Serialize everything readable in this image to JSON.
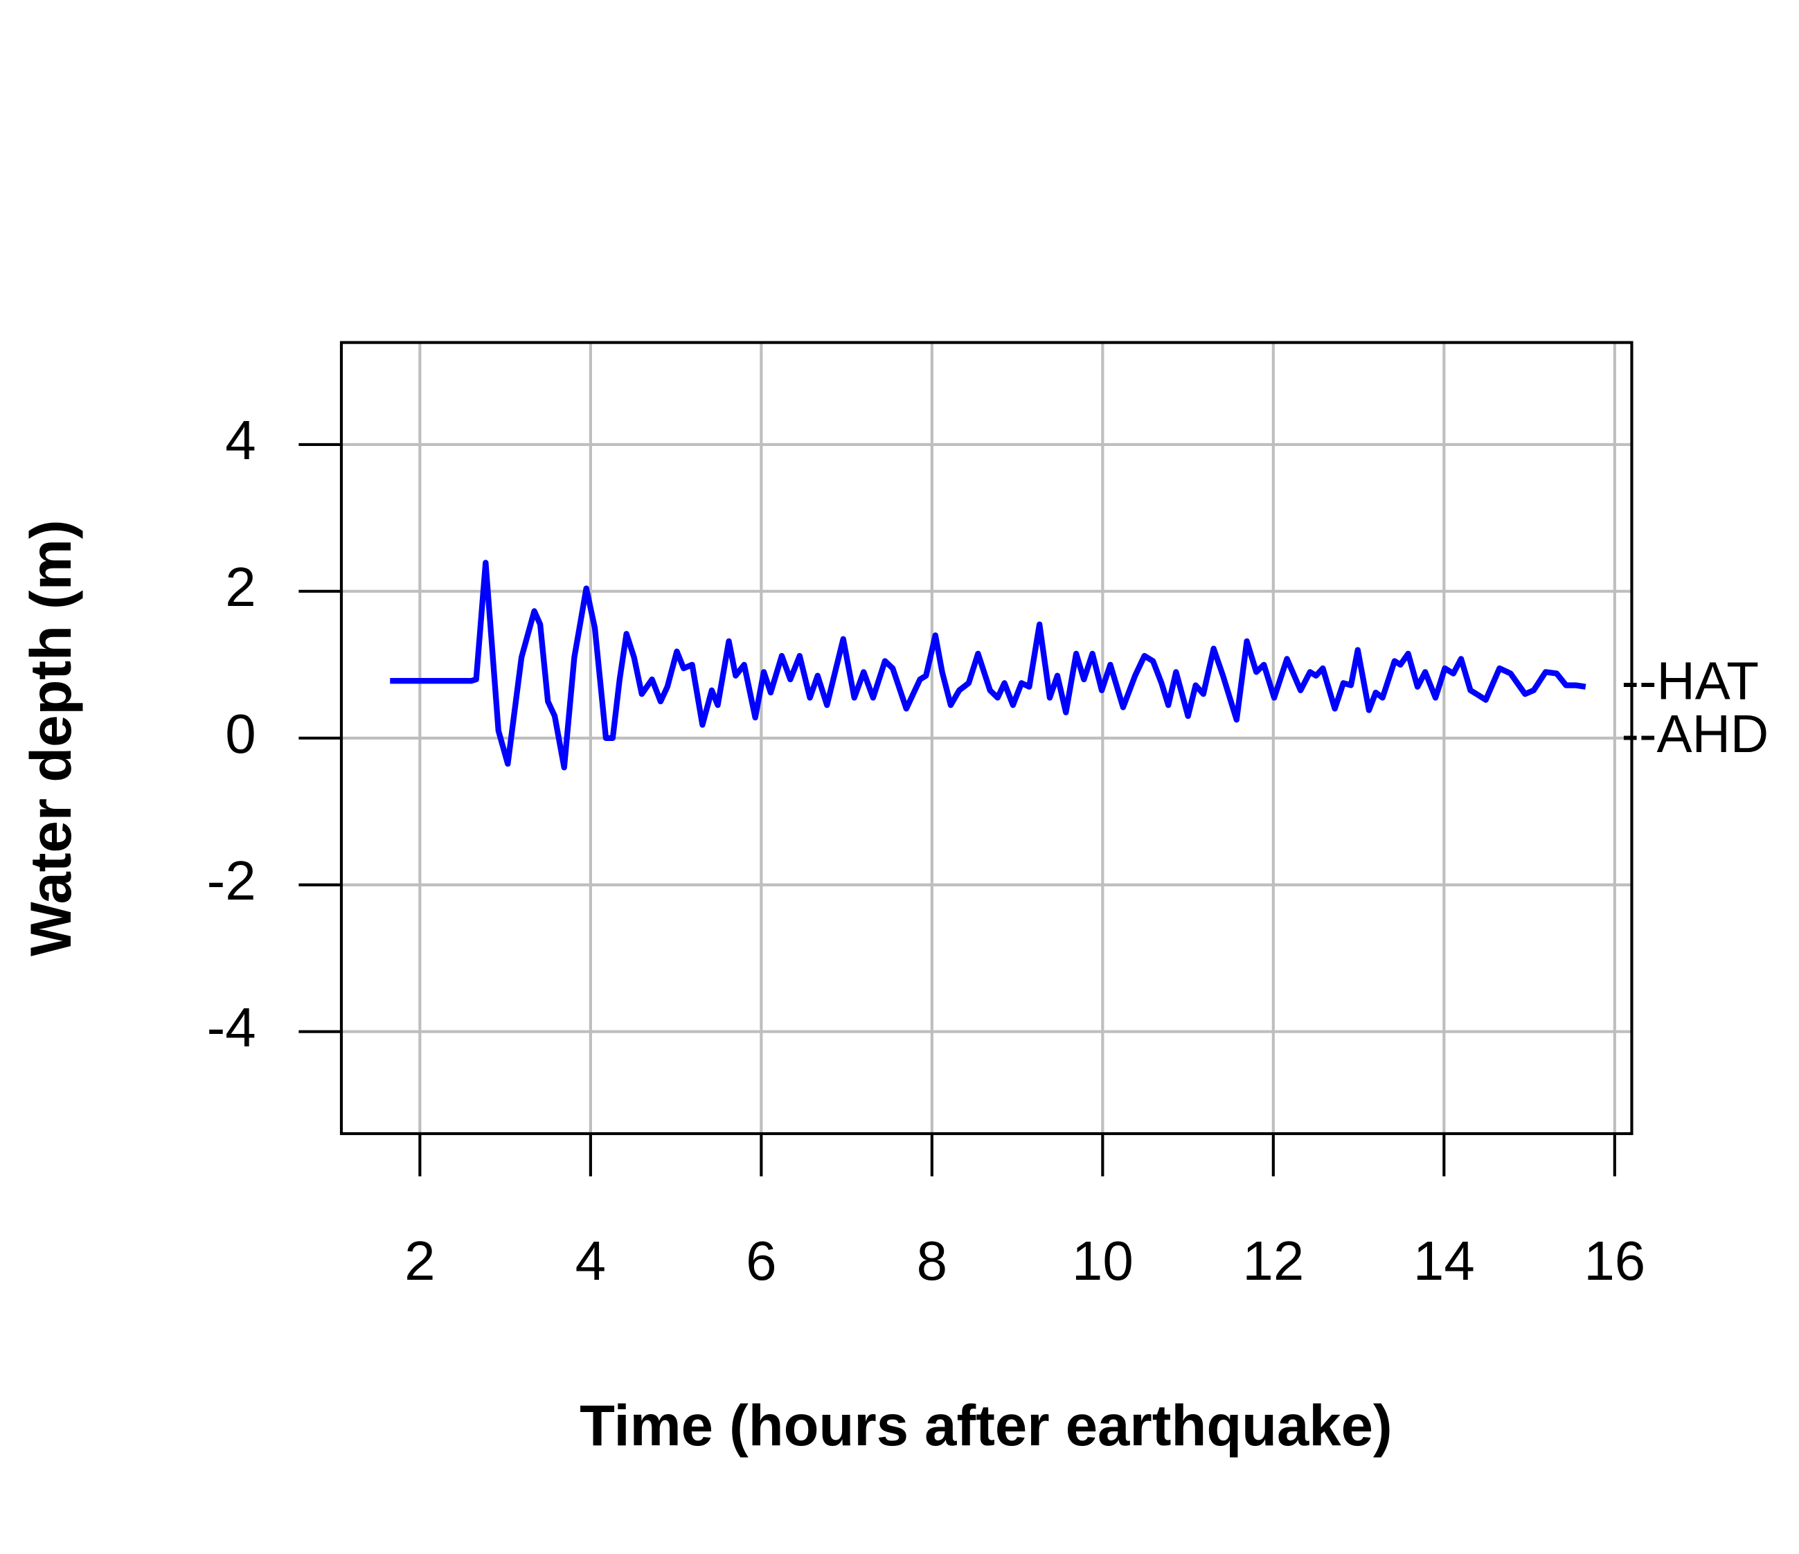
{
  "chart_data": {
    "type": "line",
    "xlabel": "Time (hours after earthquake)",
    "ylabel": "Water depth (m)",
    "xlim": [
      1.08,
      16.2
    ],
    "ylim": [
      -5.39,
      5.39
    ],
    "xticks": [
      2,
      4,
      6,
      8,
      10,
      12,
      14,
      16
    ],
    "yticks": [
      -4,
      -2,
      0,
      2,
      4
    ],
    "grid": true,
    "color": "#0000ff",
    "annotations": [
      {
        "label": "--HAT",
        "y": 0.72
      },
      {
        "label": "--AHD",
        "y": 0
      }
    ],
    "x": [
      1.65,
      2.0,
      2.3,
      2.6,
      2.66,
      2.77,
      2.92,
      3.03,
      3.19,
      3.34,
      3.41,
      3.5,
      3.58,
      3.69,
      3.81,
      3.95,
      4.05,
      4.18,
      4.26,
      4.34,
      4.42,
      4.51,
      4.6,
      4.72,
      4.82,
      4.9,
      5.01,
      5.09,
      5.19,
      5.31,
      5.42,
      5.49,
      5.62,
      5.7,
      5.8,
      5.93,
      6.03,
      6.11,
      6.24,
      6.34,
      6.45,
      6.57,
      6.66,
      6.77,
      6.96,
      7.09,
      7.2,
      7.31,
      7.45,
      7.54,
      7.7,
      7.86,
      7.93,
      8.04,
      8.12,
      8.22,
      8.32,
      8.43,
      8.54,
      8.68,
      8.77,
      8.85,
      8.95,
      9.05,
      9.14,
      9.26,
      9.38,
      9.47,
      9.57,
      9.69,
      9.78,
      9.88,
      9.99,
      10.09,
      10.24,
      10.38,
      10.49,
      10.59,
      10.69,
      10.77,
      10.86,
      11.0,
      11.09,
      11.18,
      11.3,
      11.41,
      11.57,
      11.69,
      11.8,
      11.89,
      12.01,
      12.16,
      12.32,
      12.43,
      12.5,
      12.58,
      12.72,
      12.82,
      12.91,
      12.99,
      13.12,
      13.2,
      13.28,
      13.42,
      13.49,
      13.58,
      13.69,
      13.78,
      13.9,
      14.01,
      14.11,
      14.2,
      14.31,
      14.41,
      14.49,
      14.65,
      14.78,
      14.95,
      15.05,
      15.19,
      15.32,
      15.43,
      15.54,
      15.66
    ],
    "values": [
      0.78,
      0.78,
      0.78,
      0.78,
      0.8,
      2.39,
      0.1,
      -0.35,
      1.1,
      1.73,
      1.55,
      0.5,
      0.3,
      -0.4,
      1.1,
      2.04,
      1.5,
      0.0,
      0.0,
      0.8,
      1.42,
      1.1,
      0.6,
      0.8,
      0.5,
      0.7,
      1.18,
      0.95,
      1.0,
      0.18,
      0.65,
      0.45,
      1.32,
      0.85,
      1.0,
      0.28,
      0.9,
      0.62,
      1.12,
      0.8,
      1.12,
      0.55,
      0.85,
      0.45,
      1.35,
      0.55,
      0.9,
      0.55,
      1.05,
      0.95,
      0.4,
      0.8,
      0.85,
      1.4,
      0.9,
      0.45,
      0.65,
      0.75,
      1.15,
      0.65,
      0.55,
      0.75,
      0.45,
      0.75,
      0.7,
      1.55,
      0.55,
      0.85,
      0.35,
      1.15,
      0.8,
      1.15,
      0.65,
      1.0,
      0.42,
      0.85,
      1.12,
      1.05,
      0.75,
      0.45,
      0.9,
      0.3,
      0.72,
      0.6,
      1.22,
      0.85,
      0.25,
      1.32,
      0.9,
      1.0,
      0.55,
      1.08,
      0.65,
      0.9,
      0.85,
      0.95,
      0.4,
      0.75,
      0.72,
      1.2,
      0.38,
      0.62,
      0.55,
      1.05,
      1.0,
      1.15,
      0.7,
      0.9,
      0.55,
      0.95,
      0.88,
      1.08,
      0.65,
      0.58,
      0.52,
      0.95,
      0.88,
      0.6,
      0.65,
      0.9,
      0.88,
      0.72,
      0.72,
      0.7
    ]
  }
}
